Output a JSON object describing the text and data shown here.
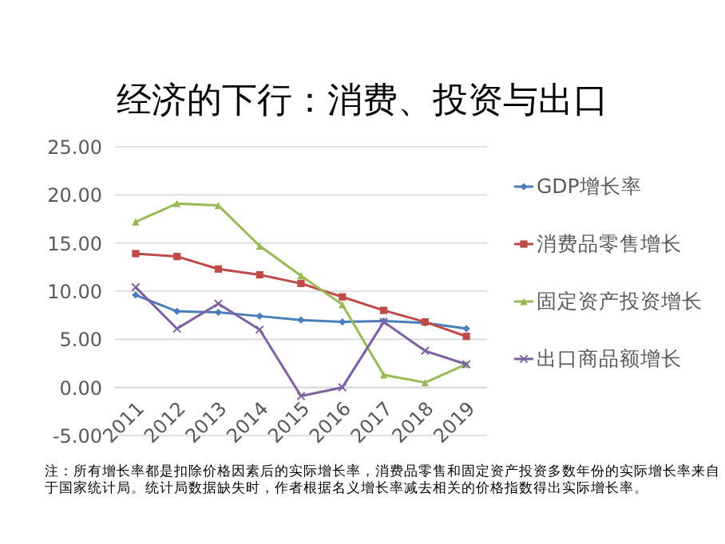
{
  "chart_data": {
    "type": "line",
    "title": "经济的下行：消费、投资与出口",
    "categories": [
      "2011",
      "2012",
      "2013",
      "2014",
      "2015",
      "2016",
      "2017",
      "2018",
      "2019"
    ],
    "series": [
      {
        "name": "GDP增长率",
        "color": "#4a7ebb",
        "marker": "diamond",
        "values": [
          9.6,
          7.9,
          7.8,
          7.4,
          7.0,
          6.8,
          6.9,
          6.7,
          6.1
        ]
      },
      {
        "name": "消费品零售增长",
        "color": "#be4b48",
        "marker": "square",
        "values": [
          13.9,
          13.6,
          12.3,
          11.7,
          10.8,
          9.4,
          8.0,
          6.8,
          5.3
        ]
      },
      {
        "name": "固定资产投资增长",
        "color": "#98b954",
        "marker": "triangle",
        "values": [
          17.2,
          19.1,
          18.9,
          14.7,
          11.6,
          8.6,
          1.3,
          0.5,
          2.4
        ]
      },
      {
        "name": "出口商品额增长",
        "color": "#7d60a0",
        "marker": "cross",
        "values": [
          10.4,
          6.1,
          8.7,
          6.0,
          -0.9,
          0.0,
          6.8,
          3.8,
          2.4
        ]
      }
    ],
    "ylim": [
      -5,
      25
    ],
    "yticks": [
      {
        "value": -5,
        "label": "-5.00"
      },
      {
        "value": 0,
        "label": "0.00"
      },
      {
        "value": 5,
        "label": "5.00"
      },
      {
        "value": 10,
        "label": "10.00"
      },
      {
        "value": 15,
        "label": "15.00"
      },
      {
        "value": 20,
        "label": "20.00"
      },
      {
        "value": 25,
        "label": "25.00"
      }
    ],
    "grid": "y",
    "legend": "right",
    "annotations": [
      "注：所有增长率都是扣除价格因素后的实际增长率，消费品零售和固定资产投资多数年份的实际增长率来自于国家统计局。统计局数据缺失时，作者根据名义增长率减去相关的价格指数得出实际增长率。"
    ]
  }
}
